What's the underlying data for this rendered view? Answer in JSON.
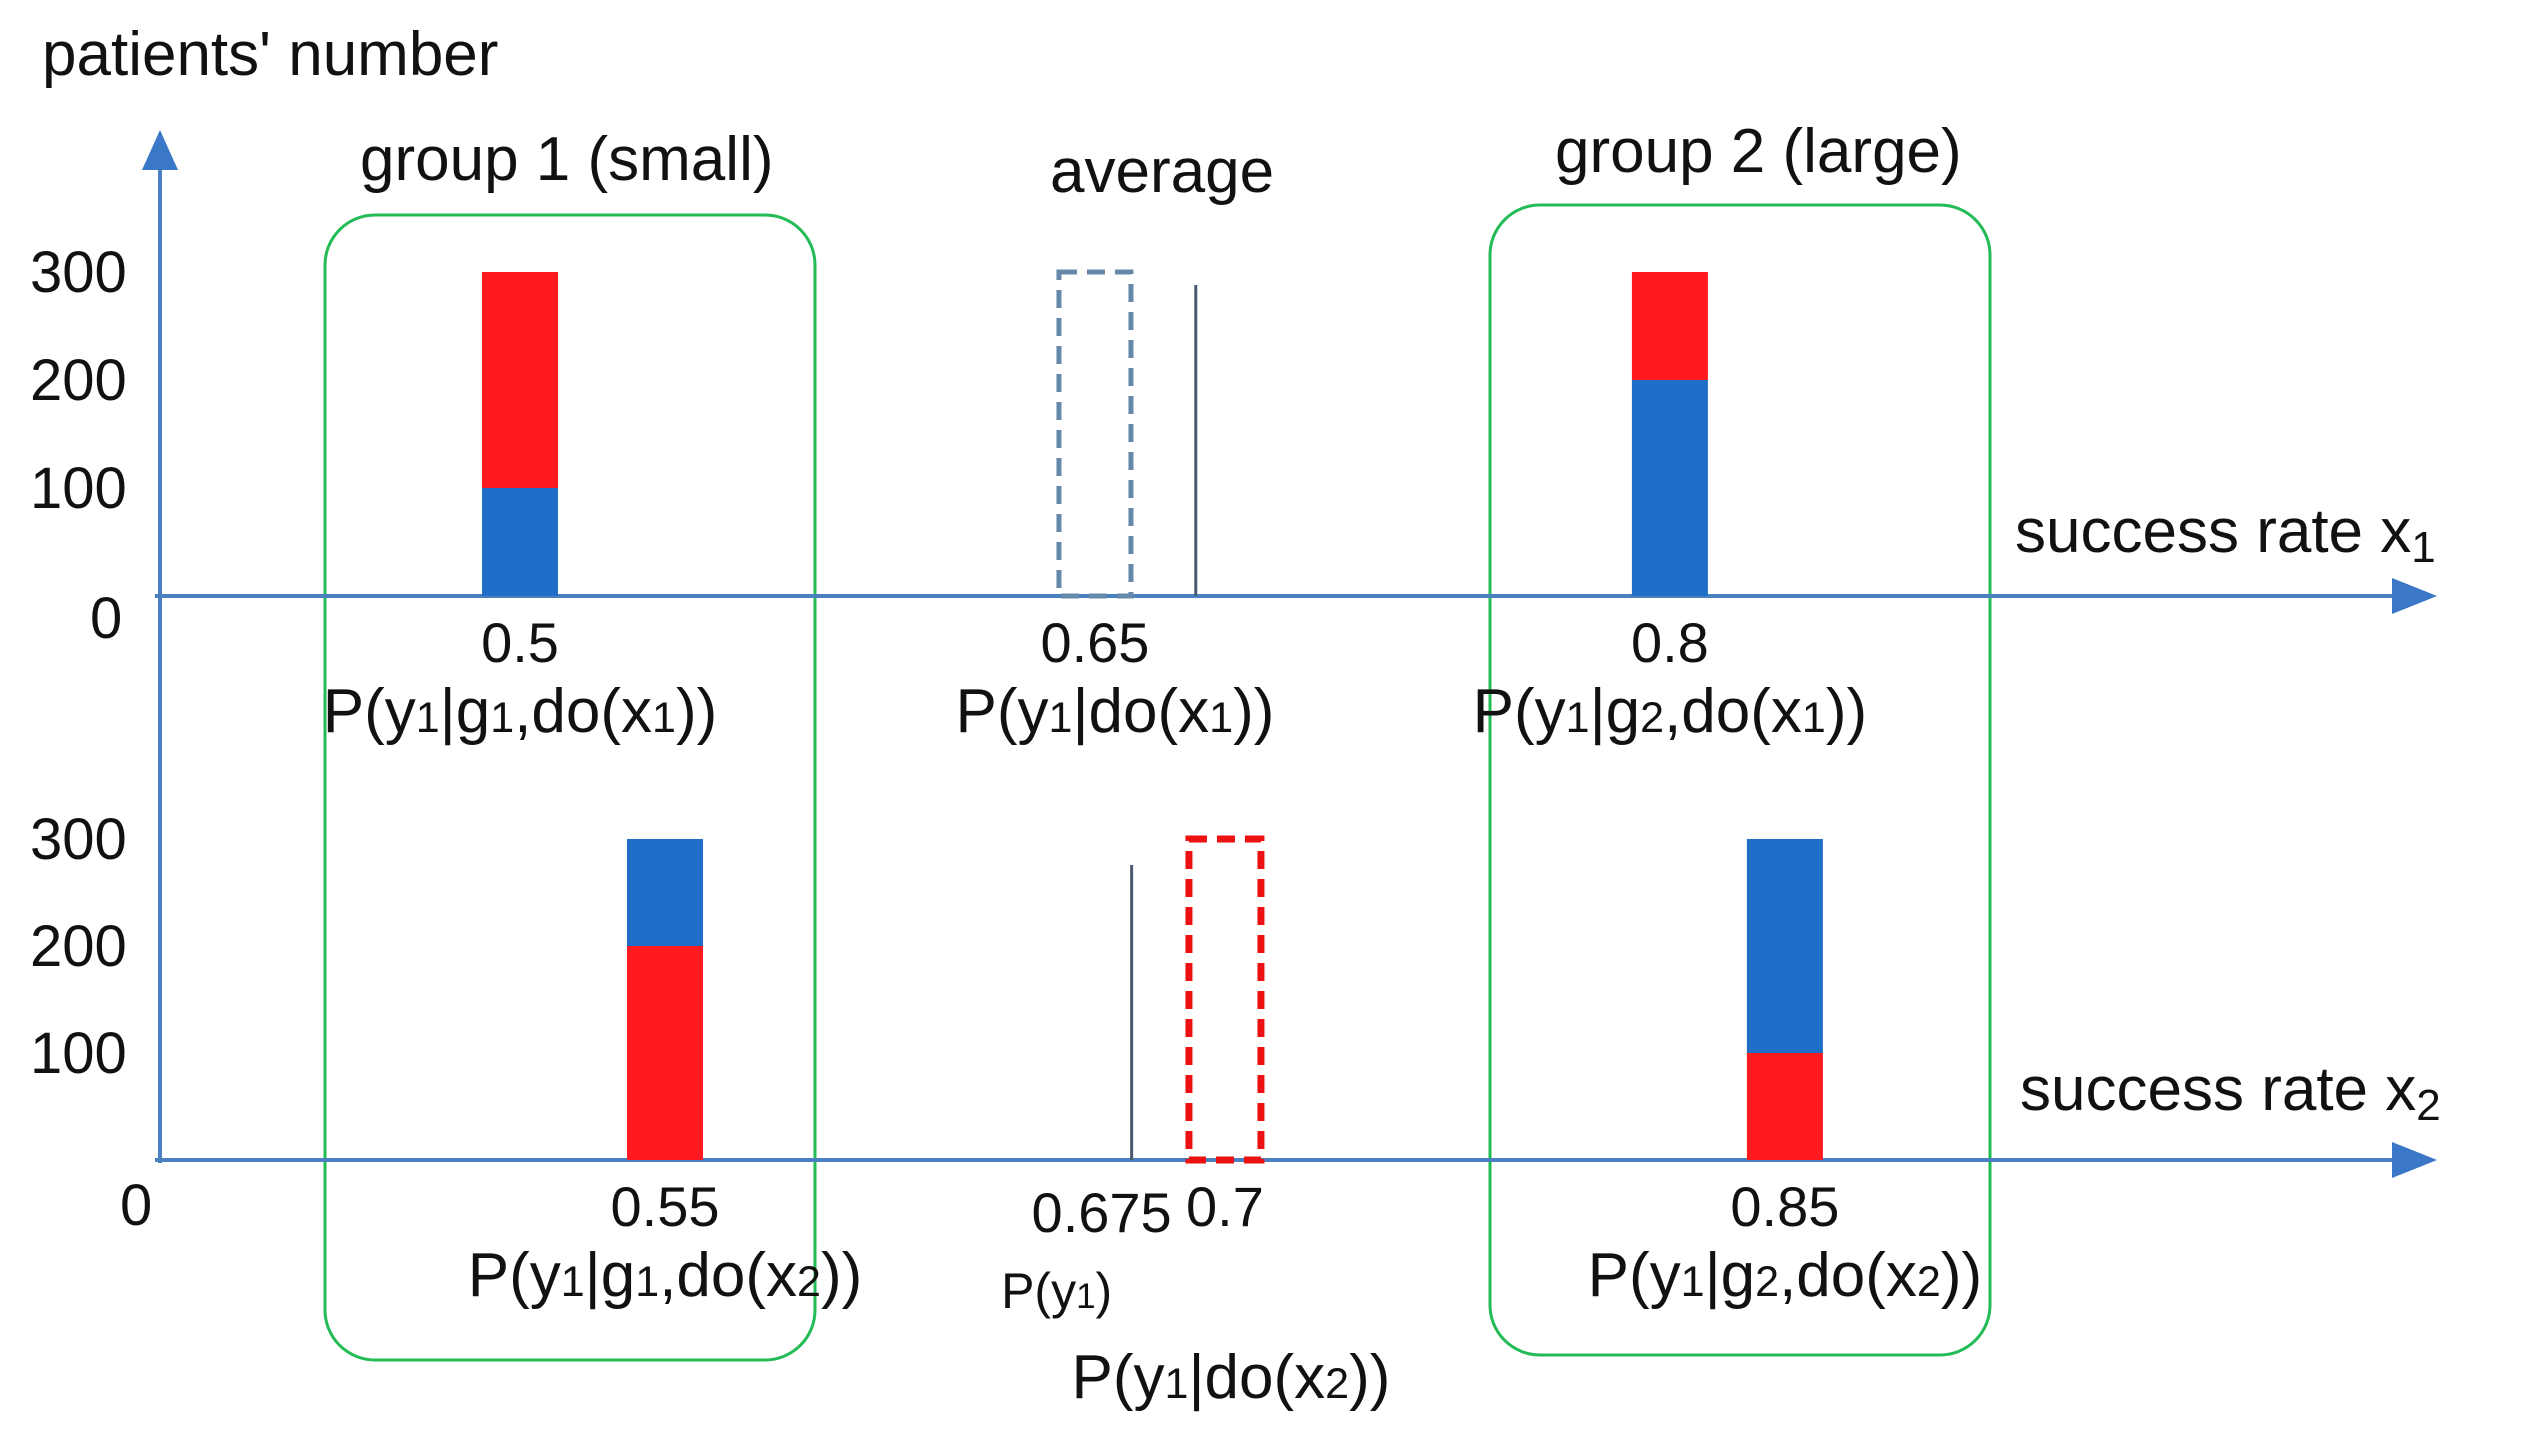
{
  "chart_data": {
    "type": "bar",
    "ylabel": "patients' number",
    "colors": {
      "blue": "#1f6fc8",
      "red": "#ff1a1f",
      "box": "#22bb55",
      "axis": "#4a7fc0"
    },
    "groups": [
      {
        "label": "group 1",
        "note": "(small)"
      },
      {
        "label": "average",
        "note": ""
      },
      {
        "label": "group 2",
        "note": "(large)"
      }
    ],
    "panels": [
      {
        "xlabel_main": "success rate x",
        "xlabel_sub": "1",
        "yticks": [
          "300",
          "200",
          "100"
        ],
        "origin": "0",
        "y_values": [
          300,
          200,
          100
        ],
        "ylim": [
          0,
          300
        ],
        "bars": [
          {
            "x": 0.5,
            "blue": 100,
            "red": 200,
            "label": "0.5",
            "prob": [
              "P(y",
              "1",
              "|g",
              "1",
              ",do(x",
              "1",
              "))"
            ]
          },
          {
            "x": 0.8,
            "blue": 200,
            "red": 100,
            "label": "0.8",
            "prob": [
              "P(y",
              "1",
              "|g",
              "2",
              ",do(x",
              "1",
              "))"
            ]
          }
        ],
        "dashed_bar": {
          "x": 0.65,
          "value": 300,
          "color": "#6688aa",
          "label": "0.65",
          "prob": [
            "P(y",
            "1",
            "|do(x",
            "1",
            "))"
          ]
        },
        "reference_line": {
          "x": 0.675
        }
      },
      {
        "xlabel_main": "success rate x",
        "xlabel_sub": "2",
        "yticks": [
          "300",
          "200",
          "100"
        ],
        "origin": "0",
        "y_values": [
          300,
          200,
          100
        ],
        "ylim": [
          0,
          300
        ],
        "bars": [
          {
            "x": 0.55,
            "blue": 100,
            "red": 200,
            "stack": "red-bottom",
            "label": "0.55",
            "prob": [
              "P(y",
              "1",
              "|g",
              "1",
              ",do(x",
              "2",
              "))"
            ]
          },
          {
            "x": 0.85,
            "blue": 200,
            "red": 100,
            "stack": "red-bottom",
            "label": "0.85",
            "prob": [
              "P(y",
              "1",
              "|g",
              "2",
              ",do(x",
              "2",
              "))"
            ]
          }
        ],
        "dashed_bar": {
          "x": 0.7,
          "value": 300,
          "color": "#ee1111",
          "label": "0.7",
          "prob": [
            "P(y",
            "1",
            "|do(x",
            "2",
            "))"
          ]
        },
        "reference_line": {
          "x": 0.675,
          "label": "0.675",
          "prob": [
            "P(y",
            "1",
            ")"
          ]
        }
      }
    ]
  }
}
